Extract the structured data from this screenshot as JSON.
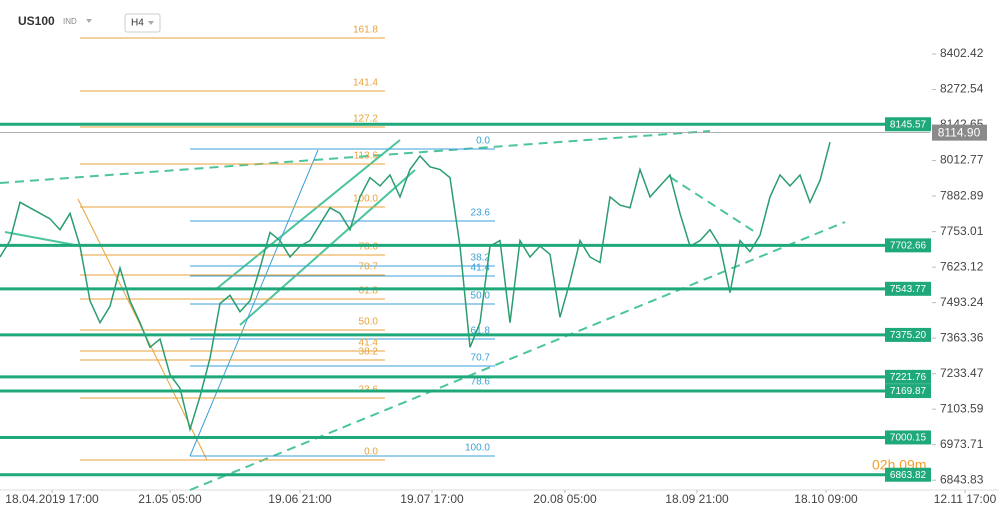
{
  "header": {
    "symbol": "US100",
    "market": "IND",
    "timeframe": "H4",
    "countdown": "02h 09m"
  },
  "chart_data": {
    "type": "line",
    "series": [
      {
        "name": "US100",
        "color": "#2a9d6f",
        "values": [
          7660,
          7720,
          7860,
          7840,
          7820,
          7800,
          7760,
          7820,
          7700,
          7500,
          7420,
          7480,
          7620,
          7500,
          7420,
          7330,
          7360,
          7230,
          7180,
          7030,
          7150,
          7290,
          7490,
          7520,
          7460,
          7500,
          7620,
          7750,
          7720,
          7660,
          7700,
          7720,
          7780,
          7840,
          7820,
          7760,
          7880,
          7950,
          7920,
          7960,
          7880,
          7980,
          8030,
          7990,
          7980,
          7950,
          7700,
          7330,
          7420,
          7700,
          7720,
          7420,
          7720,
          7660,
          7700,
          7670,
          7440,
          7570,
          7720,
          7660,
          7640,
          7880,
          7850,
          7840,
          7980,
          7880,
          7920,
          7960,
          7820,
          7700,
          7720,
          7760,
          7700,
          7530,
          7720,
          7680,
          7740,
          7880,
          7960,
          7920,
          7960,
          7860,
          7940,
          8080
        ]
      }
    ],
    "xlim": [
      0,
      99.9
    ],
    "xticks": [
      {
        "value": 5.2,
        "label": "18.04.2019  17:00"
      },
      {
        "value": 17,
        "label": "21.05  05:00"
      },
      {
        "value": 30,
        "label": "19.06  21:00"
      },
      {
        "value": 43.2,
        "label": "19.07  17:00"
      },
      {
        "value": 56.5,
        "label": "20.08  05:00"
      },
      {
        "value": 69.7,
        "label": "18.09  21:00"
      },
      {
        "value": 82.6,
        "label": "18.10  09:00"
      },
      {
        "value": 96.5,
        "label": "12.11  17:00"
      }
    ],
    "ylim": [
      6808,
      8600
    ],
    "yticks": [
      8402.42,
      8272.54,
      8142.65,
      8012.77,
      7882.89,
      7753.01,
      7623.12,
      7493.24,
      7363.36,
      7233.47,
      7103.59,
      6973.71,
      6843.83
    ],
    "levels": [
      8145.57,
      7702.66,
      7543.77,
      7375.2,
      7221.76,
      7169.87,
      7000.15,
      6863.82
    ],
    "level_labels": [
      "8145.57",
      "7702.66",
      "7543.77",
      "7375.20",
      "7221.76",
      "7169.87",
      "7000.15",
      "6863.82"
    ],
    "level_color": "#1fa97a",
    "current_price": 8114.9,
    "current_price_label": "8114.90",
    "fib_orange": [
      "161.8",
      "141.4",
      "127.2",
      "113.6",
      "100.0",
      "78.6",
      "70.7",
      "61.8",
      "50.0",
      "41.4",
      "38.2",
      "23.6",
      "0.0"
    ],
    "fib_blue": [
      "0.0",
      "23.6",
      "38.2",
      "41.4",
      "50.0",
      "61.8",
      "70.7",
      "78.6",
      "100.0"
    ]
  }
}
